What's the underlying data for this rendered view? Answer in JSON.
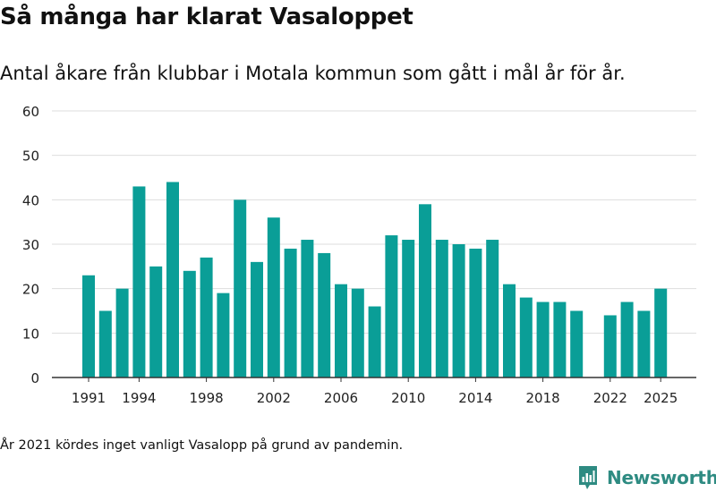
{
  "title": "Så många har klarat Vasaloppet",
  "subtitle": "Antal åkare från klubbar i Motala kommun som gått i mål år för år.",
  "footnote": "År 2021 kördes inget vanligt Vasalopp på grund av pandemin.",
  "brand": {
    "name": "Newsworthy",
    "icon": "newsworthy-logo-icon",
    "color": "#2e8b82"
  },
  "colors": {
    "bar": "#0a9e97",
    "grid": "#dddddd",
    "axis": "#333333",
    "text": "#222222"
  },
  "chart_data": {
    "type": "bar",
    "title": "Så många har klarat Vasaloppet",
    "xlabel": "",
    "ylabel": "",
    "ylim": [
      0,
      60
    ],
    "yticks": [
      0,
      10,
      20,
      30,
      40,
      50,
      60
    ],
    "xlim": [
      1990,
      2026.5
    ],
    "xticks": [
      1991,
      1994,
      1998,
      2002,
      2006,
      2010,
      2014,
      2018,
      2022,
      2025
    ],
    "grid": true,
    "categories": [
      1991,
      1992,
      1993,
      1994,
      1995,
      1996,
      1997,
      1998,
      1999,
      2000,
      2001,
      2002,
      2003,
      2004,
      2005,
      2006,
      2007,
      2008,
      2009,
      2010,
      2011,
      2012,
      2013,
      2014,
      2015,
      2016,
      2017,
      2018,
      2019,
      2020,
      2021,
      2022,
      2023,
      2024,
      2025
    ],
    "values": [
      23,
      15,
      20,
      43,
      25,
      44,
      24,
      27,
      19,
      40,
      26,
      36,
      29,
      31,
      28,
      21,
      20,
      16,
      32,
      31,
      39,
      31,
      30,
      29,
      31,
      21,
      18,
      17,
      17,
      15,
      null,
      14,
      17,
      15,
      20
    ]
  }
}
